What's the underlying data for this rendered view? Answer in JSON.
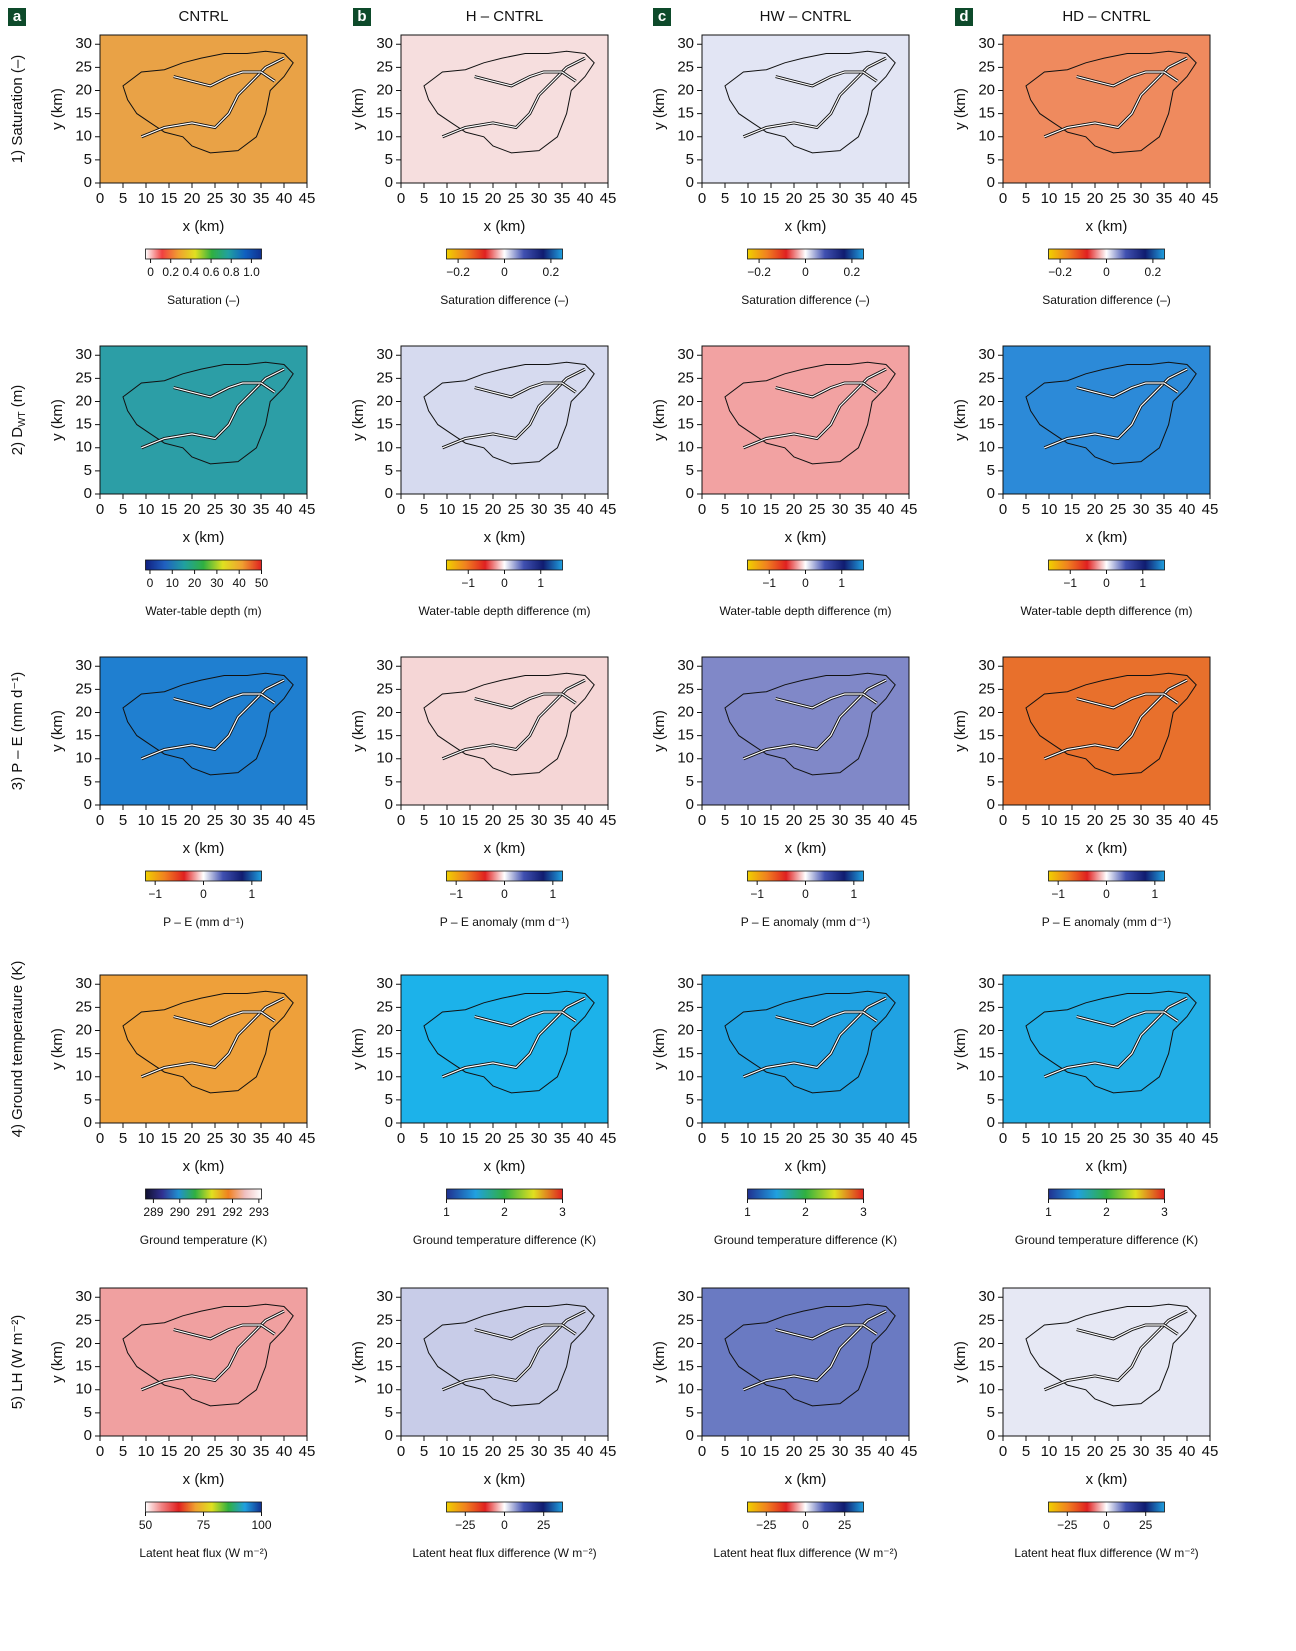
{
  "chart_data": [
    {
      "type": "heatmap",
      "panel": "a",
      "title": "CNTRL",
      "row_label": "1)  Saturation (–)",
      "xlabel": "x (km)",
      "ylabel": "y (km)",
      "xlim": [
        0,
        45
      ],
      "ylim": [
        0,
        32
      ],
      "xticks": [
        0,
        5,
        10,
        15,
        20,
        25,
        30,
        35,
        40,
        45
      ],
      "yticks": [
        0,
        5,
        10,
        15,
        20,
        25,
        30
      ],
      "color": "#e9a246",
      "colorbar": {
        "label": "Saturation (–)",
        "lim": [
          -0.05,
          1.1
        ],
        "ticks": [
          0,
          0.2,
          0.4,
          0.6,
          0.8,
          {
            "value": 1.0,
            "label": "1.0"
          }
        ],
        "colors": [
          "#ffffff",
          "#f04040",
          "#f0a030",
          "#e0e020",
          "#30b040",
          "#20a0a0",
          "#1060c0",
          "#103090"
        ]
      }
    },
    {
      "type": "heatmap",
      "panel": "b",
      "title": "H – CNTRL",
      "xlabel": "x (km)",
      "ylabel": "y (km)",
      "xlim": [
        0,
        45
      ],
      "ylim": [
        0,
        32
      ],
      "xticks": [
        0,
        5,
        10,
        15,
        20,
        25,
        30,
        35,
        40,
        45
      ],
      "yticks": [
        0,
        5,
        10,
        15,
        20,
        25,
        30
      ],
      "color": "#f6dede",
      "colorbar": {
        "label": "Saturation difference (–)",
        "lim": [
          -0.25,
          0.25
        ],
        "ticks": [
          {
            "value": -0.2,
            "label": "−0.2"
          },
          0,
          0.2
        ],
        "colors": [
          "#f0d000",
          "#f08020",
          "#e02020",
          "#ffffff",
          "#4050b0",
          "#101c70",
          "#20a0e0"
        ]
      }
    },
    {
      "type": "heatmap",
      "panel": "c",
      "title": "HW – CNTRL",
      "xlabel": "x (km)",
      "ylabel": "y (km)",
      "xlim": [
        0,
        45
      ],
      "ylim": [
        0,
        32
      ],
      "xticks": [
        0,
        5,
        10,
        15,
        20,
        25,
        30,
        35,
        40,
        45
      ],
      "yticks": [
        0,
        5,
        10,
        15,
        20,
        25,
        30
      ],
      "color": "#e2e5f4",
      "colorbar": {
        "label": "Saturation difference (–)",
        "lim": [
          -0.25,
          0.25
        ],
        "ticks": [
          {
            "value": -0.2,
            "label": "−0.2"
          },
          0,
          0.2
        ],
        "colors": [
          "#f0d000",
          "#f08020",
          "#e02020",
          "#ffffff",
          "#4050b0",
          "#101c70",
          "#20a0e0"
        ]
      }
    },
    {
      "type": "heatmap",
      "panel": "d",
      "title": "HD – CNTRL",
      "xlabel": "x (km)",
      "ylabel": "y (km)",
      "xlim": [
        0,
        45
      ],
      "ylim": [
        0,
        32
      ],
      "xticks": [
        0,
        5,
        10,
        15,
        20,
        25,
        30,
        35,
        40,
        45
      ],
      "yticks": [
        0,
        5,
        10,
        15,
        20,
        25,
        30
      ],
      "color": "#ef8a5e",
      "colorbar": {
        "label": "Saturation difference (–)",
        "lim": [
          -0.25,
          0.25
        ],
        "ticks": [
          {
            "value": -0.2,
            "label": "−0.2"
          },
          0,
          0.2
        ],
        "colors": [
          "#f0d000",
          "#f08020",
          "#e02020",
          "#ffffff",
          "#4050b0",
          "#101c70",
          "#20a0e0"
        ]
      }
    },
    {
      "type": "heatmap",
      "row_label": "2)  D",
      "row_label_sub": "WT",
      "row_label_tail": " (m)",
      "xlabel": "x (km)",
      "ylabel": "y (km)",
      "xlim": [
        0,
        45
      ],
      "ylim": [
        0,
        32
      ],
      "xticks": [
        0,
        5,
        10,
        15,
        20,
        25,
        30,
        35,
        40,
        45
      ],
      "yticks": [
        0,
        5,
        10,
        15,
        20,
        25,
        30
      ],
      "color": "#2c9ea6",
      "colorbar": {
        "label": "Water-table depth (m)",
        "lim": [
          -2,
          50
        ],
        "ticks": [
          0,
          10,
          20,
          30,
          40,
          50
        ],
        "colors": [
          "#102080",
          "#2060c0",
          "#20a0a0",
          "#30b040",
          "#e0e020",
          "#f0a030",
          "#e02020"
        ]
      }
    },
    {
      "type": "heatmap",
      "xlabel": "x (km)",
      "ylabel": "y (km)",
      "xlim": [
        0,
        45
      ],
      "ylim": [
        0,
        32
      ],
      "xticks": [
        0,
        5,
        10,
        15,
        20,
        25,
        30,
        35,
        40,
        45
      ],
      "yticks": [
        0,
        5,
        10,
        15,
        20,
        25,
        30
      ],
      "color": "#d6daef",
      "colorbar": {
        "label": "Water-table depth difference (m)",
        "lim": [
          -1.6,
          1.6
        ],
        "ticks": [
          {
            "value": -1,
            "label": "−1"
          },
          0,
          1
        ],
        "colors": [
          "#f0d000",
          "#f08020",
          "#e02020",
          "#ffffff",
          "#4050b0",
          "#101c70",
          "#20a0e0"
        ]
      }
    },
    {
      "type": "heatmap",
      "xlabel": "x (km)",
      "ylabel": "y (km)",
      "xlim": [
        0,
        45
      ],
      "ylim": [
        0,
        32
      ],
      "xticks": [
        0,
        5,
        10,
        15,
        20,
        25,
        30,
        35,
        40,
        45
      ],
      "yticks": [
        0,
        5,
        10,
        15,
        20,
        25,
        30
      ],
      "color": "#f2a2a2",
      "colorbar": {
        "label": "Water-table depth difference (m)",
        "lim": [
          -1.6,
          1.6
        ],
        "ticks": [
          {
            "value": -1,
            "label": "−1"
          },
          0,
          1
        ],
        "colors": [
          "#f0d000",
          "#f08020",
          "#e02020",
          "#ffffff",
          "#4050b0",
          "#101c70",
          "#20a0e0"
        ]
      }
    },
    {
      "type": "heatmap",
      "xlabel": "x (km)",
      "ylabel": "y (km)",
      "xlim": [
        0,
        45
      ],
      "ylim": [
        0,
        32
      ],
      "xticks": [
        0,
        5,
        10,
        15,
        20,
        25,
        30,
        35,
        40,
        45
      ],
      "yticks": [
        0,
        5,
        10,
        15,
        20,
        25,
        30
      ],
      "color": "#2c8ad8",
      "colorbar": {
        "label": "Water-table depth difference (m)",
        "lim": [
          -1.6,
          1.6
        ],
        "ticks": [
          {
            "value": -1,
            "label": "−1"
          },
          0,
          1
        ],
        "colors": [
          "#f0d000",
          "#f08020",
          "#e02020",
          "#ffffff",
          "#4050b0",
          "#101c70",
          "#20a0e0"
        ]
      }
    },
    {
      "type": "heatmap",
      "row_label": "3)  P – E (mm d⁻¹)",
      "xlabel": "x (km)",
      "ylabel": "y (km)",
      "xlim": [
        0,
        45
      ],
      "ylim": [
        0,
        32
      ],
      "xticks": [
        0,
        5,
        10,
        15,
        20,
        25,
        30,
        35,
        40,
        45
      ],
      "yticks": [
        0,
        5,
        10,
        15,
        20,
        25,
        30
      ],
      "color": "#1f7fd0",
      "colorbar": {
        "label": "P – E  (mm d⁻¹)",
        "lim": [
          -1.2,
          1.2
        ],
        "ticks": [
          {
            "value": -1,
            "label": "−1"
          },
          0,
          1
        ],
        "colors": [
          "#f0d000",
          "#f08020",
          "#e02020",
          "#ffffff",
          "#4050b0",
          "#101c70",
          "#20a0e0"
        ]
      }
    },
    {
      "type": "heatmap",
      "xlabel": "x (km)",
      "ylabel": "y (km)",
      "xlim": [
        0,
        45
      ],
      "ylim": [
        0,
        32
      ],
      "xticks": [
        0,
        5,
        10,
        15,
        20,
        25,
        30,
        35,
        40,
        45
      ],
      "yticks": [
        0,
        5,
        10,
        15,
        20,
        25,
        30
      ],
      "color": "#f5d6d6",
      "colorbar": {
        "label": "P – E anomaly (mm d⁻¹)",
        "lim": [
          -1.2,
          1.2
        ],
        "ticks": [
          {
            "value": -1,
            "label": "−1"
          },
          0,
          1
        ],
        "colors": [
          "#f0d000",
          "#f08020",
          "#e02020",
          "#ffffff",
          "#4050b0",
          "#101c70",
          "#20a0e0"
        ]
      }
    },
    {
      "type": "heatmap",
      "xlabel": "x (km)",
      "ylabel": "y (km)",
      "xlim": [
        0,
        45
      ],
      "ylim": [
        0,
        32
      ],
      "xticks": [
        0,
        5,
        10,
        15,
        20,
        25,
        30,
        35,
        40,
        45
      ],
      "yticks": [
        0,
        5,
        10,
        15,
        20,
        25,
        30
      ],
      "color": "#8088c8",
      "colorbar": {
        "label": "P – E anomaly (mm d⁻¹)",
        "lim": [
          -1.2,
          1.2
        ],
        "ticks": [
          {
            "value": -1,
            "label": "−1"
          },
          0,
          1
        ],
        "colors": [
          "#f0d000",
          "#f08020",
          "#e02020",
          "#ffffff",
          "#4050b0",
          "#101c70",
          "#20a0e0"
        ]
      }
    },
    {
      "type": "heatmap",
      "xlabel": "x (km)",
      "ylabel": "y (km)",
      "xlim": [
        0,
        45
      ],
      "ylim": [
        0,
        32
      ],
      "xticks": [
        0,
        5,
        10,
        15,
        20,
        25,
        30,
        35,
        40,
        45
      ],
      "yticks": [
        0,
        5,
        10,
        15,
        20,
        25,
        30
      ],
      "color": "#e8702c",
      "colorbar": {
        "label": "P – E anomaly (mm d⁻¹)",
        "lim": [
          -1.2,
          1.2
        ],
        "ticks": [
          {
            "value": -1,
            "label": "−1"
          },
          0,
          1
        ],
        "colors": [
          "#f0d000",
          "#f08020",
          "#e02020",
          "#ffffff",
          "#4050b0",
          "#101c70",
          "#20a0e0"
        ]
      }
    },
    {
      "type": "heatmap",
      "row_label": "4)  Ground temperature (K)",
      "xlabel": "x (km)",
      "ylabel": "y (km)",
      "xlim": [
        0,
        45
      ],
      "ylim": [
        0,
        32
      ],
      "xticks": [
        0,
        5,
        10,
        15,
        20,
        25,
        30,
        35,
        40,
        45
      ],
      "yticks": [
        0,
        5,
        10,
        15,
        20,
        25,
        30
      ],
      "color": "#eea03a",
      "colorbar": {
        "label": "Ground temperature (K)",
        "lim": [
          288.7,
          293.1
        ],
        "ticks": [
          289,
          290,
          291,
          292,
          293
        ],
        "colors": [
          "#101030",
          "#303090",
          "#2090d0",
          "#30b040",
          "#e0e020",
          "#f08020",
          "#f0c0c0",
          "#ffffff"
        ]
      }
    },
    {
      "type": "heatmap",
      "xlabel": "x (km)",
      "ylabel": "y (km)",
      "xlim": [
        0,
        45
      ],
      "ylim": [
        0,
        32
      ],
      "xticks": [
        0,
        5,
        10,
        15,
        20,
        25,
        30,
        35,
        40,
        45
      ],
      "yticks": [
        0,
        5,
        10,
        15,
        20,
        25,
        30
      ],
      "color": "#1cb2ea",
      "colorbar": {
        "label": "Ground temperature difference (K)",
        "lim": [
          1,
          3
        ],
        "ticks": [
          1,
          2,
          3
        ],
        "colors": [
          "#203090",
          "#20a0e0",
          "#30b040",
          "#e0e020",
          "#e02020"
        ]
      }
    },
    {
      "type": "heatmap",
      "xlabel": "x (km)",
      "ylabel": "y (km)",
      "xlim": [
        0,
        45
      ],
      "ylim": [
        0,
        32
      ],
      "xticks": [
        0,
        5,
        10,
        15,
        20,
        25,
        30,
        35,
        40,
        45
      ],
      "yticks": [
        0,
        5,
        10,
        15,
        20,
        25,
        30
      ],
      "color": "#20a2e2",
      "colorbar": {
        "label": "Ground temperature difference (K)",
        "lim": [
          1,
          3
        ],
        "ticks": [
          1,
          2,
          3
        ],
        "colors": [
          "#203090",
          "#20a0e0",
          "#30b040",
          "#e0e020",
          "#e02020"
        ]
      }
    },
    {
      "type": "heatmap",
      "xlabel": "x (km)",
      "ylabel": "y (km)",
      "xlim": [
        0,
        45
      ],
      "ylim": [
        0,
        32
      ],
      "xticks": [
        0,
        5,
        10,
        15,
        20,
        25,
        30,
        35,
        40,
        45
      ],
      "yticks": [
        0,
        5,
        10,
        15,
        20,
        25,
        30
      ],
      "color": "#22aee6",
      "colorbar": {
        "label": "Ground temperature difference (K)",
        "lim": [
          1,
          3
        ],
        "ticks": [
          1,
          2,
          3
        ],
        "colors": [
          "#203090",
          "#20a0e0",
          "#30b040",
          "#e0e020",
          "#e02020"
        ]
      }
    },
    {
      "type": "heatmap",
      "row_label": "5)  LH (W m⁻²)",
      "xlabel": "x (km)",
      "ylabel": "y (km)",
      "xlim": [
        0,
        45
      ],
      "ylim": [
        0,
        32
      ],
      "xticks": [
        0,
        5,
        10,
        15,
        20,
        25,
        30,
        35,
        40,
        45
      ],
      "yticks": [
        0,
        5,
        10,
        15,
        20,
        25,
        30
      ],
      "color": "#f0a0a0",
      "colorbar": {
        "label": "Latent heat flux (W m⁻²)",
        "lim": [
          50,
          100
        ],
        "ticks": [
          50,
          75,
          100
        ],
        "colors": [
          "#ffffff",
          "#f08080",
          "#e02020",
          "#f0a030",
          "#e0e020",
          "#30b040",
          "#20a0e0",
          "#103090"
        ]
      }
    },
    {
      "type": "heatmap",
      "xlabel": "x (km)",
      "ylabel": "y (km)",
      "xlim": [
        0,
        45
      ],
      "ylim": [
        0,
        32
      ],
      "xticks": [
        0,
        5,
        10,
        15,
        20,
        25,
        30,
        35,
        40,
        45
      ],
      "yticks": [
        0,
        5,
        10,
        15,
        20,
        25,
        30
      ],
      "color": "#c8cce8",
      "colorbar": {
        "label": "Latent heat flux difference (W m⁻²)",
        "lim": [
          -37,
          37
        ],
        "ticks": [
          {
            "value": -25,
            "label": "−25"
          },
          0,
          25
        ],
        "colors": [
          "#f0d000",
          "#f08020",
          "#e02020",
          "#ffffff",
          "#4050b0",
          "#101c70",
          "#20a0e0"
        ]
      }
    },
    {
      "type": "heatmap",
      "xlabel": "x (km)",
      "ylabel": "y (km)",
      "xlim": [
        0,
        45
      ],
      "ylim": [
        0,
        32
      ],
      "xticks": [
        0,
        5,
        10,
        15,
        20,
        25,
        30,
        35,
        40,
        45
      ],
      "yticks": [
        0,
        5,
        10,
        15,
        20,
        25,
        30
      ],
      "color": "#6a7ac2",
      "colorbar": {
        "label": "Latent heat flux difference (W m⁻²)",
        "lim": [
          -37,
          37
        ],
        "ticks": [
          {
            "value": -25,
            "label": "−25"
          },
          0,
          25
        ],
        "colors": [
          "#f0d000",
          "#f08020",
          "#e02020",
          "#ffffff",
          "#4050b0",
          "#101c70",
          "#20a0e0"
        ]
      }
    },
    {
      "type": "heatmap",
      "xlabel": "x (km)",
      "ylabel": "y (km)",
      "xlim": [
        0,
        45
      ],
      "ylim": [
        0,
        32
      ],
      "xticks": [
        0,
        5,
        10,
        15,
        20,
        25,
        30,
        35,
        40,
        45
      ],
      "yticks": [
        0,
        5,
        10,
        15,
        20,
        25,
        30
      ],
      "color": "#e6e8f4",
      "colorbar": {
        "label": "Latent heat flux difference (W m⁻²)",
        "lim": [
          -37,
          37
        ],
        "ticks": [
          {
            "value": -25,
            "label": "−25"
          },
          0,
          25
        ],
        "colors": [
          "#f0d000",
          "#f08020",
          "#e02020",
          "#ffffff",
          "#4050b0",
          "#101c70",
          "#20a0e0"
        ]
      }
    }
  ]
}
